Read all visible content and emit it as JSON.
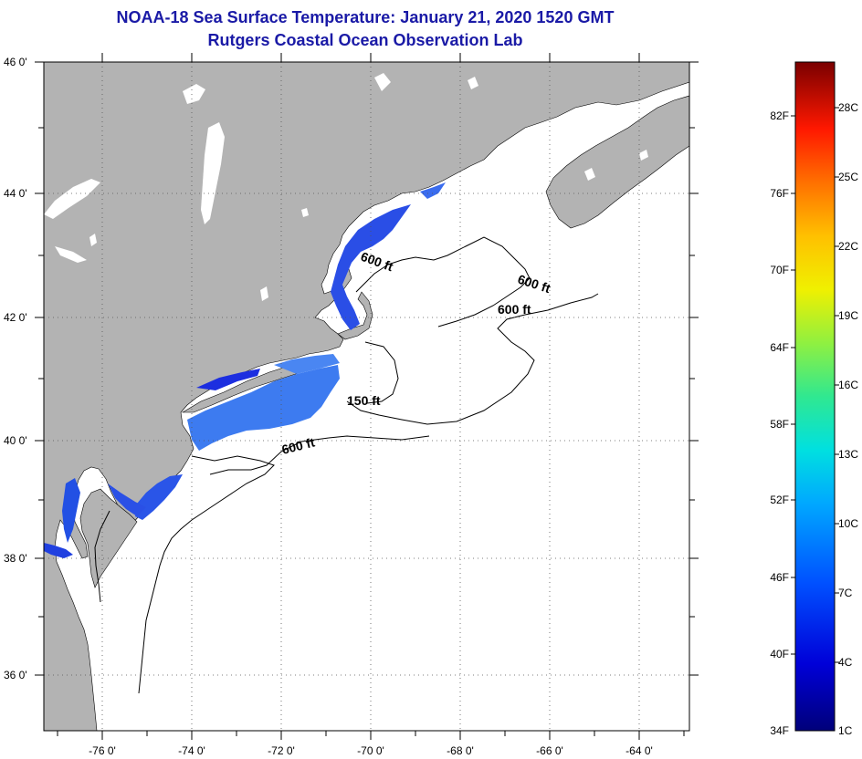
{
  "header": {
    "title": "NOAA-18 Sea Surface Temperature:  January 21, 2020 1520 GMT",
    "subtitle": "Rutgers Coastal Ocean Observation Lab"
  },
  "map": {
    "lat_labels": [
      "46 0'",
      "44 0'",
      "42 0'",
      "40 0'",
      "38 0'",
      "36 0'"
    ],
    "lon_labels": [
      "-76 0'",
      "-74 0'",
      "-72 0'",
      "-70 0'",
      "-68 0'",
      "-66 0'",
      "-64 0'"
    ],
    "contour_labels": [
      "600 ft",
      "600 ft",
      "600 ft",
      "150 ft",
      "600 ft"
    ],
    "colors": {
      "land": "#b3b3b3",
      "ocean": "#ffffff",
      "sst_warm": "#3d7bf0",
      "sst_cold": "#1c2ee0"
    }
  },
  "colorbar": {
    "fahrenheit": [
      "82F",
      "76F",
      "70F",
      "64F",
      "58F",
      "52F",
      "46F",
      "40F",
      "34F"
    ],
    "celsius": [
      "28C",
      "25C",
      "22C",
      "19C",
      "16C",
      "13C",
      "10C",
      "7C",
      "4C",
      "1C"
    ]
  }
}
